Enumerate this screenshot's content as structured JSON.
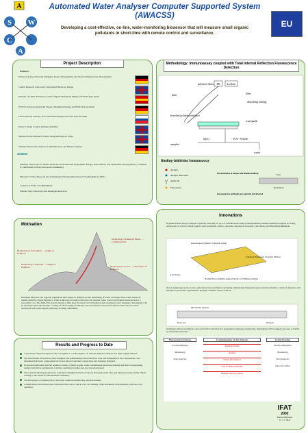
{
  "header": {
    "title": "Automated Water Analyser Computer Supported System (AWACSS)",
    "subtitle": "Developing a cost-effective, on-line, water-monitoring biosensor that will measure small organic pollutants in short-time with remote control and surveillance.",
    "logo_letters": [
      "A",
      "S",
      "W",
      "C",
      "A"
    ],
    "eu": "EU"
  },
  "project": {
    "title": "Project Description",
    "partners_label": "Partners:",
    "partners": [
      {
        "text": "Eberhard-Karls-University Tübingen: Project Management and Surface Immunoassay Development",
        "flag": "de"
      },
      {
        "text": "Central Research Laboratory: Instrument Hardware Design",
        "flag": "uk"
      },
      {
        "text": "Institute of Chem. & Environ. Chem. IIQAB: Instrument Design and Field Tests Spain",
        "flag": "es"
      },
      {
        "text": "DVGW-Technologiezentrum Wasser: Instrument Design and Field Tests Germany",
        "flag": "de"
      },
      {
        "text": "Environmental Institute, Kos: Instrument Design and Field Tests Slovakia",
        "flag": "sk"
      },
      {
        "text": "King's College London: Immunochemistry",
        "flag": "uk"
      },
      {
        "text": "Optoelectronics Research Centre: Integrated Optical Chips",
        "flag": "uk"
      },
      {
        "text": "Siemens: Electronics, Internet Communication, and Market Analysis",
        "flag": "de"
      }
    ],
    "siemens": "SIEMENS",
    "funding": "Funding: This Project is funded under the 5th Framework Programme: Energy, Environment, and Sustainable Development. (1.7 million € contribution from the European Community.)",
    "duration": "Duration: 3-Year, Research and Technological Development Project (Starting March, 2002.)",
    "contract": "Contract #: EVK1-CT-2000-00045",
    "website": "Website: http://barolo.ipc.uni-tuebingen.de/awacss"
  },
  "methodology": {
    "title": "Methodology: Immunoassay coupled with Total Internal Reflection Fluorescence Detection",
    "labels": {
      "laser": "laser",
      "fibres": "polymer fibres",
      "pd": "PD",
      "lockin": "Lock In",
      "filter": "filter",
      "coating": "absorbing coating",
      "endface": "bevelled polished end-face",
      "waveguide": "waveguide",
      "inject": "inject",
      "fia": "FIA - System",
      "samples": "samples",
      "waste": "waste"
    },
    "binding_title": "Binding-Inhibition Immunoassay",
    "legend": [
      "Analyte",
      "Analyte derivative",
      "Antibody",
      "Fluorophor"
    ],
    "preincubation": "Pre-incubation of analyte and labelled antibody",
    "flow": "flow",
    "transducer": "Transducer",
    "captured": "Increasing free antibodies are captured and detected"
  },
  "motivation": {
    "title": "Motivation",
    "notes": [
      "Monitoring of Industrial Plants → Communication",
      "Monitoring of Sole Impact → Origin of Pollution",
      "Monitoring of Estuaries → Origin of Pollution",
      "Monitoring of Coasts → Observance of Pollution"
    ],
    "text": "European Directive and regional regulations have begun to demand on-line monitoring of water, and many more water resources require analysis at high-frequency. Little technology currently exists that can monitor water sources at frequent intervals and at a reasonable cost. The AWACSS project intends to help meet the needs of both industry and consumers/water managers. Instruments will be developed that will measure a variety of small organic pollutants. The instruments will be networked so that sources will be monitored with trend analysis and early-warning capabilities."
  },
  "results": {
    "title": "Results and Progress to Date",
    "items": [
      "A prototype Integrated Optical Chip waveguide to conduct light to 32 discrete analysis windows has been largely realised.",
      "The microfluidic flowcell has been designed and preliminarily tested with flow tests and mathematical flow simulations. The instrument hardware components have been selected and their connections and housings designed.",
      "Polyclonal antibodies directed against a variety of small organic water contaminants have been isolated and their corresponding analyte derivatives synthesized. A surface spotting procedure has also been developed.",
      "The water monitoring groups have cataloged contaminant levels at various European water sites and addressed water matrix effects relating to the AWACSS measurement chemistry.",
      "The first phase of a market survey has been conducted addressing relevant markets.",
      "A multi-media tutorial has been constructed that allows quick, low-cost training of the instrument's biochemistry, software, and operation."
    ]
  },
  "innovations": {
    "title": "Innovations",
    "paragraphs": [
      "Expanded multi-analyte analysis capability allowing for up to 32 simultaneous analyte measurements. Immunochemical reagents are being developed for a host of small organic water pollutants, such as, Atrazine, Isproturon, Propanil, Carbofuran, and Ethylbenzylphthalate.",
      "Novel design approaches to the optical detection and fluidics including miniaturized integrated optics and microfluidics. Limits of detection will match EU-prescribed requirements. Reagent volumes will be reduced.",
      "Intelligent remote surveillance and control that will allow for unattended continuous monitoring. Instruments will be rugged and easy to handle by untrained personnel."
    ],
    "chip_labels": [
      "Detection Areas (Number: 32 Separate Signal)",
      "Transducer Dimensions: 32 Analyte Windows",
      "Laser Source",
      "Flexible Fiber for Immuno-assigned Specific to 32 Different Analytes"
    ],
    "fluidic_labels": [
      "Microfluidic Channel",
      "Probe port",
      "Inlet port"
    ],
    "table": {
      "left": {
        "title": "Measurement Stations",
        "items": [
          "Local Intelligence",
          "Monitoring",
          "Data Analysis"
        ]
      },
      "middle": {
        "title": "Communication via the Internet",
        "items": [
          "Analytical Data",
          "Alarms",
          "Status Information",
          "Call for Measurements",
          "Manual Device Control"
        ]
      },
      "right": {
        "title": "Control Station",
        "items": [
          "Global Intelligence",
          "Monitoring",
          "Data Analysis",
          "Data Recording"
        ]
      }
    }
  },
  "footer": {
    "ifat": "IFAT",
    "year": "2002",
    "venue": "Messe München",
    "dates": "13.-17. May"
  }
}
